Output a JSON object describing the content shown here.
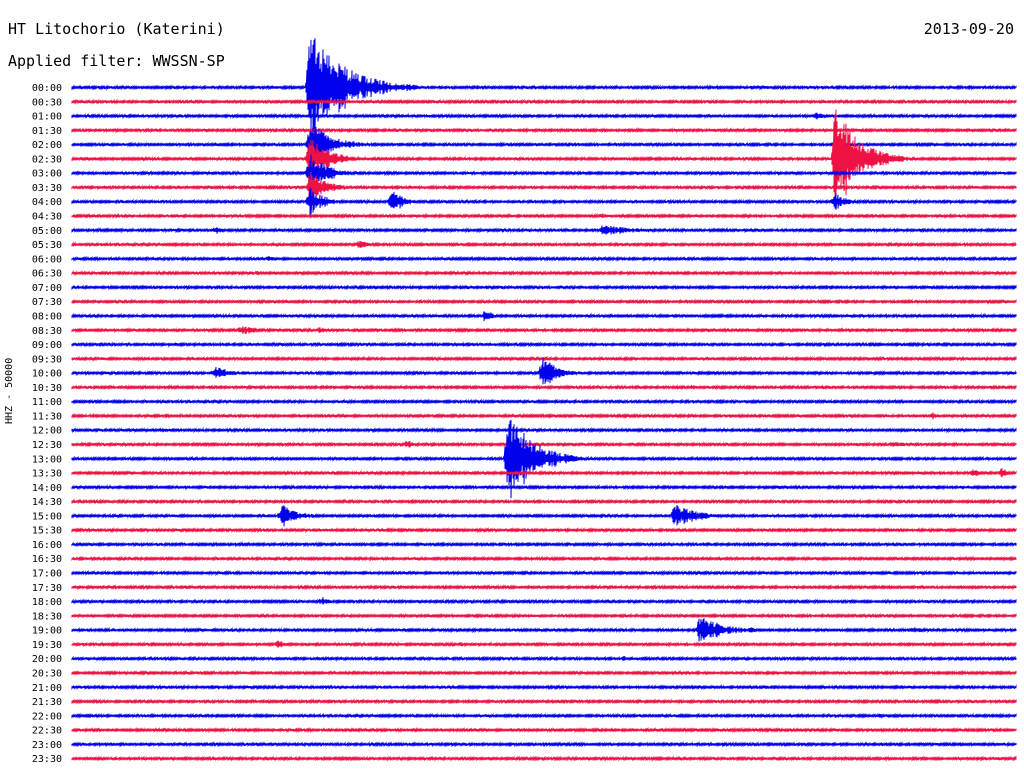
{
  "header": {
    "station": "HT Litochorio (Katerini)",
    "filter": "Applied filter: WWSSN-SP",
    "date": "2013-09-20",
    "channel": "HHZ - 50000"
  },
  "chart_data": {
    "type": "line",
    "title": "HT Litochorio (Katerini)",
    "subtitle": "Applied filter: WWSSN-SP",
    "ylabel": "HHZ - 50000",
    "trace_colors": [
      "#0000ee",
      "#ee1144"
    ],
    "y_ticks": [
      "00:00",
      "00:30",
      "01:00",
      "01:30",
      "02:00",
      "02:30",
      "03:00",
      "03:30",
      "04:00",
      "04:30",
      "05:00",
      "05:30",
      "06:00",
      "06:30",
      "07:00",
      "07:30",
      "08:00",
      "08:30",
      "09:00",
      "09:30",
      "10:00",
      "10:30",
      "11:00",
      "11:30",
      "12:00",
      "12:30",
      "13:00",
      "13:30",
      "14:00",
      "14:30",
      "15:00",
      "15:30",
      "16:00",
      "16:30",
      "17:00",
      "17:30",
      "18:00",
      "18:30",
      "19:00",
      "19:30",
      "20:00",
      "20:30",
      "21:00",
      "21:30",
      "22:00",
      "22:30",
      "23:00",
      "23:30"
    ],
    "x_range_minutes": [
      0,
      30
    ],
    "events": [
      {
        "row": 0,
        "minute": 21.5,
        "amplitude": 2,
        "duration_min": 7.5
      },
      {
        "row": 0,
        "minute": 12.8,
        "amplitude": 3,
        "duration_min": 1.2
      },
      {
        "row": 2,
        "minute": 23.6,
        "amplitude": 5,
        "duration_min": 1.0
      },
      {
        "row": 0,
        "minute": 7.5,
        "amplitude": 62,
        "duration_min": 3.5
      },
      {
        "row": 4,
        "minute": 7.5,
        "amplitude": 26,
        "duration_min": 2.2
      },
      {
        "row": 5,
        "minute": 7.5,
        "amplitude": 24,
        "duration_min": 2.0
      },
      {
        "row": 6,
        "minute": 7.5,
        "amplitude": 22,
        "duration_min": 1.8
      },
      {
        "row": 7,
        "minute": 7.5,
        "amplitude": 20,
        "duration_min": 1.6
      },
      {
        "row": 8,
        "minute": 7.5,
        "amplitude": 18,
        "duration_min": 1.4
      },
      {
        "row": 8,
        "minute": 10.1,
        "amplitude": 14,
        "duration_min": 1.3
      },
      {
        "row": 9,
        "minute": 16.8,
        "amplitude": 4,
        "duration_min": 0.8
      },
      {
        "row": 10,
        "minute": 4.5,
        "amplitude": 5,
        "duration_min": 0.8
      },
      {
        "row": 10,
        "minute": 16.8,
        "amplitude": 6,
        "duration_min": 3.5
      },
      {
        "row": 11,
        "minute": 9.1,
        "amplitude": 8,
        "duration_min": 0.9
      },
      {
        "row": 12,
        "minute": 6.2,
        "amplitude": 4,
        "duration_min": 0.8
      },
      {
        "row": 13,
        "minute": 5.8,
        "amplitude": 3,
        "duration_min": 0.8
      },
      {
        "row": 5,
        "minute": 24.2,
        "amplitude": 60,
        "duration_min": 2.4
      },
      {
        "row": 8,
        "minute": 24.2,
        "amplitude": 12,
        "duration_min": 1.0
      },
      {
        "row": 16,
        "minute": 13.1,
        "amplitude": 10,
        "duration_min": 0.7
      },
      {
        "row": 17,
        "minute": 5.3,
        "amplitude": 5,
        "duration_min": 2.5
      },
      {
        "row": 17,
        "minute": 7.8,
        "amplitude": 4,
        "duration_min": 1.5
      },
      {
        "row": 20,
        "minute": 4.5,
        "amplitude": 9,
        "duration_min": 1.4
      },
      {
        "row": 20,
        "minute": 14.9,
        "amplitude": 20,
        "duration_min": 1.5
      },
      {
        "row": 21,
        "minute": 19.7,
        "amplitude": 3,
        "duration_min": 0.8
      },
      {
        "row": 23,
        "minute": 27.3,
        "amplitude": 6,
        "duration_min": 0.6
      },
      {
        "row": 24,
        "minute": 2.8,
        "amplitude": 3,
        "duration_min": 0.9
      },
      {
        "row": 25,
        "minute": 10.6,
        "amplitude": 8,
        "duration_min": 0.5
      },
      {
        "row": 25,
        "minute": 26.0,
        "amplitude": 3,
        "duration_min": 3.5
      },
      {
        "row": 26,
        "minute": 13.8,
        "amplitude": 55,
        "duration_min": 2.5
      },
      {
        "row": 27,
        "minute": 28.6,
        "amplitude": 6,
        "duration_min": 0.6
      },
      {
        "row": 27,
        "minute": 29.5,
        "amplitude": 10,
        "duration_min": 0.5
      },
      {
        "row": 30,
        "minute": 6.6,
        "amplitude": 14,
        "duration_min": 1.6
      },
      {
        "row": 30,
        "minute": 19.1,
        "amplitude": 14,
        "duration_min": 2.2
      },
      {
        "row": 36,
        "minute": 7.9,
        "amplitude": 6,
        "duration_min": 0.8
      },
      {
        "row": 38,
        "minute": 19.9,
        "amplitude": 18,
        "duration_min": 2.2
      },
      {
        "row": 38,
        "minute": 21.5,
        "amplitude": 5,
        "duration_min": 0.6
      },
      {
        "row": 38,
        "minute": 26.6,
        "amplitude": 6,
        "duration_min": 1.0
      },
      {
        "row": 39,
        "minute": 6.5,
        "amplitude": 6,
        "duration_min": 0.8
      },
      {
        "row": 39,
        "minute": 12.3,
        "amplitude": 3,
        "duration_min": 0.8
      },
      {
        "row": 40,
        "minute": 17.5,
        "amplitude": 4,
        "duration_min": 0.7
      },
      {
        "row": 42,
        "minute": 22.0,
        "amplitude": 3,
        "duration_min": 0.6
      },
      {
        "row": 44,
        "minute": 25.6,
        "amplitude": 3,
        "duration_min": 0.8
      }
    ]
  }
}
